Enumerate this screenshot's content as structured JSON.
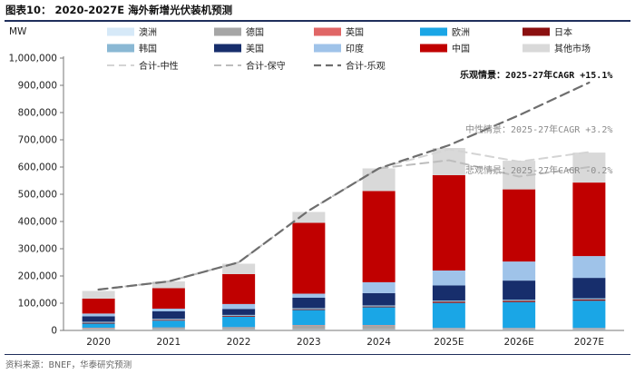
{
  "figure": {
    "title": "图表10：  2020-2027E 海外新增光伏装机预测",
    "source": "资料来源：BNEF，华泰研究预测"
  },
  "colors": {
    "澳洲": "#d6e9f8",
    "德国": "#a6a6a6",
    "英国": "#e06666",
    "欧洲": "#1aa6e6",
    "日本": "#8b1010",
    "韩国": "#8ab8d4",
    "美国": "#172e6c",
    "印度": "#9fc3e9",
    "中国": "#c00000",
    "其他市场": "#d9d9d9",
    "合计-中性": "#d4d4d4",
    "合计-保守": "#bdbdbd",
    "合计-乐观": "#6e6e6e"
  },
  "chart_data": {
    "type": "bar",
    "stacked": true,
    "ylabel": "MW",
    "ylim": [
      0,
      1000000
    ],
    "yticks": [
      0,
      100000,
      200000,
      300000,
      400000,
      500000,
      600000,
      700000,
      800000,
      900000,
      1000000
    ],
    "ytick_labels": [
      "0",
      "100,000",
      "200,000",
      "300,000",
      "400,000",
      "500,000",
      "600,000",
      "700,000",
      "800,000",
      "900,000",
      "1,000,000"
    ],
    "categories": [
      "2020",
      "2021",
      "2022",
      "2023",
      "2024",
      "2025E",
      "2026E",
      "2027E"
    ],
    "legend_position": "top",
    "series": [
      {
        "name": "澳洲",
        "values": [
          4000,
          4000,
          4000,
          4000,
          4000,
          4000,
          4000,
          4000
        ]
      },
      {
        "name": "德国",
        "values": [
          5000,
          6000,
          7000,
          15000,
          15000,
          4000,
          4000,
          4000
        ]
      },
      {
        "name": "英国",
        "values": [
          1000,
          1000,
          1000,
          1000,
          1000,
          1000,
          1000,
          1000
        ]
      },
      {
        "name": "欧洲",
        "values": [
          15000,
          25000,
          38000,
          55000,
          65000,
          92000,
          95000,
          100000
        ]
      },
      {
        "name": "日本",
        "values": [
          3000,
          3000,
          3000,
          3000,
          3000,
          5000,
          5000,
          5000
        ]
      },
      {
        "name": "韩国",
        "values": [
          4000,
          4000,
          4000,
          4000,
          4000,
          4000,
          4000,
          4000
        ]
      },
      {
        "name": "美国",
        "values": [
          20000,
          27000,
          22000,
          38000,
          45000,
          55000,
          70000,
          75000
        ]
      },
      {
        "name": "印度",
        "values": [
          10000,
          10000,
          18000,
          15000,
          40000,
          55000,
          70000,
          80000
        ]
      },
      {
        "name": "中国",
        "values": [
          55000,
          75000,
          110000,
          260000,
          335000,
          350000,
          265000,
          270000
        ]
      },
      {
        "name": "其他市场",
        "values": [
          28000,
          25000,
          38000,
          40000,
          83000,
          100000,
          105000,
          110000
        ]
      }
    ],
    "lines": [
      {
        "name": "合计-中性",
        "style": "dashed",
        "values": [
          150000,
          180000,
          250000,
          440000,
          595000,
          665000,
          620000,
          655000
        ]
      },
      {
        "name": "合计-保守",
        "style": "dashed",
        "values": [
          150000,
          180000,
          250000,
          440000,
          595000,
          625000,
          565000,
          600000
        ]
      },
      {
        "name": "合计-乐观",
        "style": "dashed",
        "values": [
          150000,
          180000,
          250000,
          440000,
          595000,
          680000,
          790000,
          910000
        ]
      }
    ],
    "annotations": [
      {
        "text": "乐观情景：2025-27年CAGR +15.1%",
        "color": "#111111",
        "bold": true,
        "at": [
          7,
          940000
        ],
        "anchor": "end"
      },
      {
        "text": "中性情景：2025-27年CAGR +3.2%",
        "color": "#8c8c8c",
        "bold": false,
        "at": [
          7,
          740000
        ],
        "anchor": "end"
      },
      {
        "text": "悲观情景：2025-27年CAGR -0.2%",
        "color": "#8c8c8c",
        "bold": false,
        "at": [
          7,
          590000
        ],
        "anchor": "end"
      }
    ]
  }
}
